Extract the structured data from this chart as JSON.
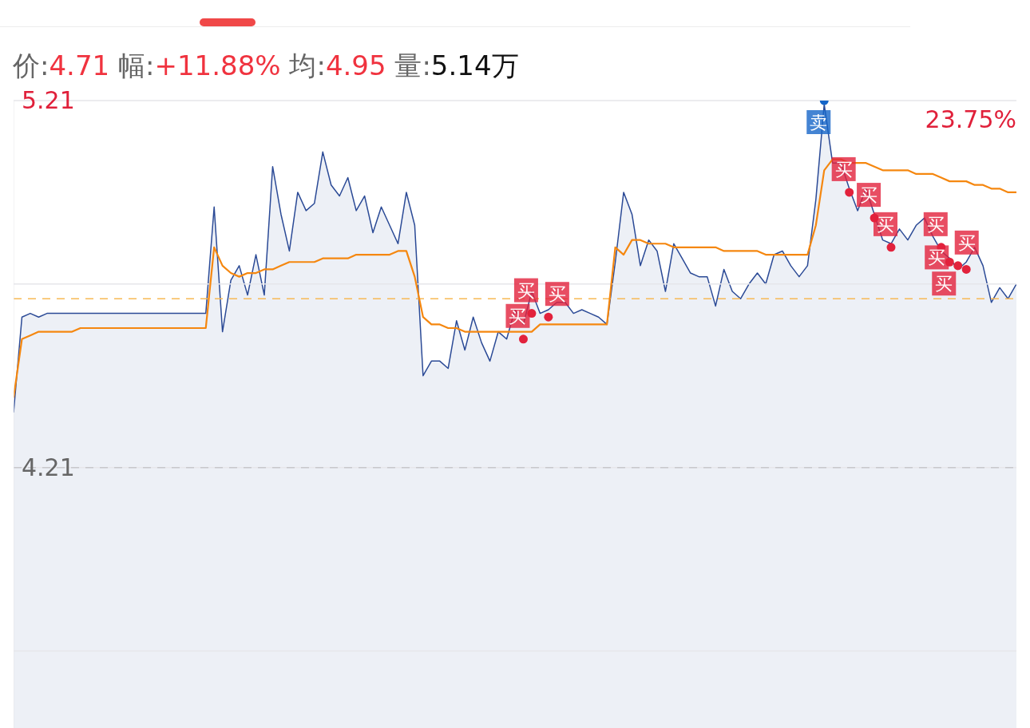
{
  "chart_data": {
    "type": "line",
    "title": "价:4.71 幅:+11.88% 均:4.95 量:5.14万",
    "annotations": [
      "23.75%"
    ],
    "categories": [
      null,
      null,
      null,
      null,
      null,
      null,
      null,
      null,
      null,
      null,
      null,
      null,
      null,
      null,
      null,
      null,
      null,
      null,
      null,
      null,
      null,
      null,
      null,
      null,
      null,
      null,
      null,
      null,
      null,
      null,
      null,
      null,
      null,
      null,
      null,
      null,
      null,
      null,
      null,
      null,
      null,
      null,
      null,
      null,
      null,
      null,
      null,
      null,
      null,
      null,
      null,
      null,
      null,
      null,
      null,
      null,
      null,
      null,
      null,
      null,
      null,
      null,
      null,
      null,
      null,
      null,
      null,
      null,
      null,
      null,
      null,
      null,
      null,
      null,
      null,
      null,
      null,
      null,
      null,
      null,
      null,
      null,
      null,
      null,
      null,
      null,
      null,
      null,
      null,
      null,
      null,
      null,
      null,
      null,
      null,
      null,
      null,
      null,
      null,
      null,
      null,
      null,
      null,
      null,
      null,
      null,
      null,
      null,
      null,
      null,
      null,
      null,
      null,
      null,
      null,
      null,
      null,
      null,
      null,
      null,
      null
    ],
    "ylim": [
      3.5,
      5.21
    ],
    "yticks": [
      5.21,
      {
        "value": 4.71,
        "label": null
      },
      4.21,
      {
        "value": 3.71,
        "label": null
      }
    ],
    "grid": "y",
    "line_style": "solid",
    "ref_lines": [
      {
        "axis": "y",
        "value": 4.21,
        "color": "#c8c8cc",
        "line_style": "dashed"
      },
      {
        "axis": "y",
        "value": 4.67,
        "color": "#f7b955",
        "line_style": "dashed"
      }
    ],
    "series": [
      {
        "type": "area",
        "color": "#2b4a96",
        "values": [
          4.36,
          4.62,
          4.63,
          4.62,
          4.63,
          4.63,
          4.63,
          4.63,
          4.63,
          4.63,
          4.63,
          4.63,
          4.63,
          4.63,
          4.63,
          4.63,
          4.63,
          4.63,
          4.63,
          4.63,
          4.63,
          4.63,
          4.63,
          4.63,
          4.92,
          4.58,
          4.72,
          4.76,
          4.68,
          4.79,
          4.68,
          5.03,
          4.9,
          4.8,
          4.96,
          4.91,
          4.93,
          5.07,
          4.98,
          4.95,
          5.0,
          4.91,
          4.95,
          4.85,
          4.92,
          4.87,
          4.82,
          4.96,
          4.87,
          4.46,
          4.5,
          4.5,
          4.48,
          4.61,
          4.53,
          4.62,
          4.55,
          4.5,
          4.58,
          4.56,
          4.64,
          4.6,
          4.69,
          4.63,
          4.64,
          4.66,
          4.66,
          4.63,
          4.64,
          4.63,
          4.62,
          4.6,
          4.77,
          4.96,
          4.9,
          4.76,
          4.83,
          4.8,
          4.69,
          4.82,
          4.78,
          4.74,
          4.73,
          4.73,
          4.65,
          4.75,
          4.69,
          4.67,
          4.71,
          4.74,
          4.71,
          4.79,
          4.8,
          4.76,
          4.73,
          4.76,
          4.94,
          5.2,
          5.04,
          5.04,
          4.97,
          4.91,
          4.97,
          4.9,
          4.83,
          4.82,
          4.86,
          4.83,
          4.87,
          4.89,
          4.84,
          4.8,
          4.78,
          4.75,
          4.77,
          4.81,
          4.76,
          4.66,
          4.7,
          4.67,
          4.71
        ]
      },
      {
        "type": "line",
        "color": "#f5870f",
        "values": [
          4.4,
          4.56,
          4.57,
          4.58,
          4.58,
          4.58,
          4.58,
          4.58,
          4.59,
          4.59,
          4.59,
          4.59,
          4.59,
          4.59,
          4.59,
          4.59,
          4.59,
          4.59,
          4.59,
          4.59,
          4.59,
          4.59,
          4.59,
          4.59,
          4.81,
          4.76,
          4.74,
          4.73,
          4.74,
          4.74,
          4.75,
          4.75,
          4.76,
          4.77,
          4.77,
          4.77,
          4.77,
          4.78,
          4.78,
          4.78,
          4.78,
          4.79,
          4.79,
          4.79,
          4.79,
          4.79,
          4.8,
          4.8,
          4.73,
          4.62,
          4.6,
          4.6,
          4.59,
          4.59,
          4.58,
          4.58,
          4.58,
          4.58,
          4.58,
          4.58,
          4.58,
          4.58,
          4.58,
          4.6,
          4.6,
          4.6,
          4.6,
          4.6,
          4.6,
          4.6,
          4.6,
          4.6,
          4.81,
          4.79,
          4.83,
          4.83,
          4.82,
          4.82,
          4.82,
          4.81,
          4.81,
          4.81,
          4.81,
          4.81,
          4.81,
          4.8,
          4.8,
          4.8,
          4.8,
          4.8,
          4.79,
          4.79,
          4.79,
          4.79,
          4.79,
          4.79,
          4.87,
          5.02,
          5.05,
          5.05,
          5.04,
          5.04,
          5.04,
          5.03,
          5.02,
          5.02,
          5.02,
          5.02,
          5.01,
          5.01,
          5.01,
          5.0,
          4.99,
          4.99,
          4.99,
          4.98,
          4.98,
          4.97,
          4.97,
          4.96,
          4.96
        ]
      },
      {
        "type": "scatter",
        "color": "#e2223c",
        "marker": "circle",
        "values": [
          null,
          null,
          null,
          null,
          null,
          null,
          null,
          null,
          null,
          null,
          null,
          null,
          null,
          null,
          null,
          null,
          null,
          null,
          null,
          null,
          null,
          null,
          null,
          null,
          null,
          null,
          null,
          null,
          null,
          null,
          null,
          null,
          null,
          null,
          null,
          null,
          null,
          null,
          null,
          null,
          null,
          null,
          null,
          null,
          null,
          null,
          null,
          null,
          null,
          null,
          null,
          null,
          null,
          null,
          null,
          null,
          null,
          null,
          null,
          null,
          null,
          4.56,
          4.63,
          null,
          4.62,
          null,
          null,
          null,
          null,
          null,
          null,
          null,
          null,
          null,
          null,
          null,
          null,
          null,
          null,
          null,
          null,
          null,
          null,
          null,
          null,
          null,
          null,
          null,
          null,
          null,
          null,
          null,
          null,
          null,
          null,
          null,
          null,
          null,
          null,
          null,
          4.96,
          null,
          null,
          4.89,
          null,
          4.81,
          null,
          null,
          null,
          null,
          null,
          4.81,
          4.77,
          4.76,
          4.75,
          null,
          null,
          null,
          null,
          null,
          null
        ],
        "value_labels": [
          null,
          null,
          null,
          null,
          null,
          null,
          null,
          null,
          null,
          null,
          null,
          null,
          null,
          null,
          null,
          null,
          null,
          null,
          null,
          null,
          null,
          null,
          null,
          null,
          null,
          null,
          null,
          null,
          null,
          null,
          null,
          null,
          null,
          null,
          null,
          null,
          null,
          null,
          null,
          null,
          null,
          null,
          null,
          null,
          null,
          null,
          null,
          null,
          null,
          null,
          null,
          null,
          null,
          null,
          null,
          null,
          null,
          null,
          null,
          null,
          null,
          "买",
          "买",
          null,
          "买",
          null,
          null,
          null,
          null,
          null,
          null,
          null,
          null,
          null,
          null,
          null,
          null,
          null,
          null,
          null,
          null,
          null,
          null,
          null,
          null,
          null,
          null,
          null,
          null,
          null,
          null,
          null,
          null,
          null,
          null,
          null,
          null,
          null,
          null,
          null,
          "买",
          null,
          null,
          "买",
          null,
          "买",
          null,
          null,
          null,
          null,
          null,
          "买",
          "买",
          "买",
          "买",
          null,
          null,
          null,
          null,
          null,
          null
        ]
      },
      {
        "type": "scatter",
        "color": "#1565c8",
        "marker": "circle",
        "values": [
          null,
          null,
          null,
          null,
          null,
          null,
          null,
          null,
          null,
          null,
          null,
          null,
          null,
          null,
          null,
          null,
          null,
          null,
          null,
          null,
          null,
          null,
          null,
          null,
          null,
          null,
          null,
          null,
          null,
          null,
          null,
          null,
          null,
          null,
          null,
          null,
          null,
          null,
          null,
          null,
          null,
          null,
          null,
          null,
          null,
          null,
          null,
          null,
          null,
          null,
          null,
          null,
          null,
          null,
          null,
          null,
          null,
          null,
          null,
          null,
          null,
          null,
          null,
          null,
          null,
          null,
          null,
          null,
          null,
          null,
          null,
          null,
          null,
          null,
          null,
          null,
          null,
          null,
          null,
          null,
          null,
          null,
          null,
          null,
          null,
          null,
          null,
          null,
          null,
          null,
          null,
          null,
          null,
          null,
          null,
          null,
          null,
          5.21,
          null,
          null,
          null,
          null,
          null,
          null,
          null,
          null,
          null,
          null,
          null,
          null,
          null,
          null,
          null,
          null,
          null,
          null,
          null,
          null,
          null,
          null,
          null
        ],
        "value_labels": [
          null,
          null,
          null,
          null,
          null,
          null,
          null,
          null,
          null,
          null,
          null,
          null,
          null,
          null,
          null,
          null,
          null,
          null,
          null,
          null,
          null,
          null,
          null,
          null,
          null,
          null,
          null,
          null,
          null,
          null,
          null,
          null,
          null,
          null,
          null,
          null,
          null,
          null,
          null,
          null,
          null,
          null,
          null,
          null,
          null,
          null,
          null,
          null,
          null,
          null,
          null,
          null,
          null,
          null,
          null,
          null,
          null,
          null,
          null,
          null,
          null,
          null,
          null,
          null,
          null,
          null,
          null,
          null,
          null,
          null,
          null,
          null,
          null,
          null,
          null,
          null,
          null,
          null,
          null,
          null,
          null,
          null,
          null,
          null,
          null,
          null,
          null,
          null,
          null,
          null,
          null,
          null,
          null,
          null,
          null,
          null,
          null,
          "卖",
          null,
          null,
          null,
          null,
          null,
          null,
          null,
          null,
          null,
          null,
          null,
          null,
          null,
          null,
          null,
          null,
          null,
          null,
          null,
          null,
          null,
          null,
          null
        ]
      }
    ]
  }
}
